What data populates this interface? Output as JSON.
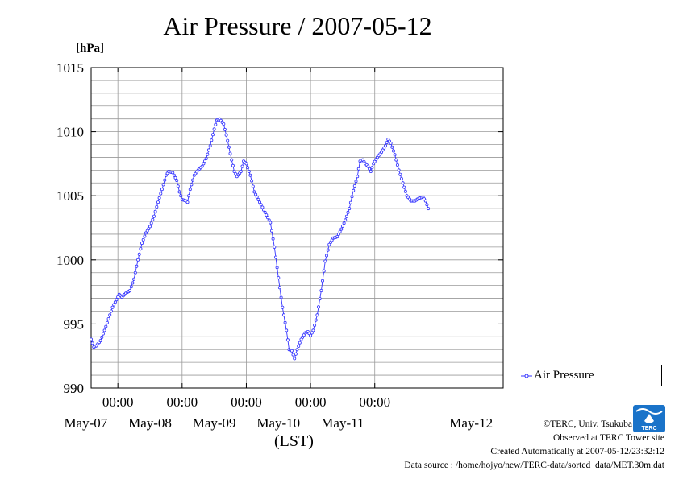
{
  "header": {
    "title": "Air Pressure / 2007-05-12",
    "unit": "[hPa]"
  },
  "legend": {
    "label": "Air Pressure"
  },
  "axis": {
    "x_unit": "(LST)"
  },
  "footer": {
    "copyright": "©TERC, Univ. Tsukuba",
    "observed": "Observed at TERC Tower site",
    "created": "Created Automatically at 2007-05-12/23:32:12",
    "source": "Data source : /home/hojyo/new/TERC-data/sorted_data/MET.30m.dat",
    "logo_text": "TERC"
  },
  "colors": {
    "series": "#3333ff",
    "grid": "#9a9a9a",
    "logo": "#1a73c9"
  },
  "chart_data": {
    "type": "line",
    "title": "Air Pressure / 2007-05-12",
    "ylabel": "[hPa]",
    "xlabel": "(LST)",
    "ylim": [
      990,
      1015
    ],
    "yticks": [
      990,
      995,
      1000,
      1005,
      1010,
      1015
    ],
    "xlim": [
      "2007-05-06 14:00",
      "2007-05-13 00:00"
    ],
    "xticks": [
      {
        "time": "2007-05-07 00:00",
        "time_label": "00:00",
        "date_label": "May-07"
      },
      {
        "time": "2007-05-08 00:00",
        "time_label": "00:00",
        "date_label": "May-08"
      },
      {
        "time": "2007-05-09 00:00",
        "time_label": "00:00",
        "date_label": "May-09"
      },
      {
        "time": "2007-05-10 00:00",
        "time_label": "00:00",
        "date_label": "May-10"
      },
      {
        "time": "2007-05-11 00:00",
        "time_label": "00:00",
        "date_label": "May-11"
      }
    ],
    "extra_date_labels": [
      {
        "time": "2007-05-12 12:00",
        "label": "May-12"
      }
    ],
    "grid": true,
    "legend_position": "right",
    "series": [
      {
        "name": "Air Pressure",
        "points": [
          [
            "2007-05-06 14:00",
            993.8
          ],
          [
            "2007-05-06 15:00",
            993.2
          ],
          [
            "2007-05-06 16:00",
            993.3
          ],
          [
            "2007-05-06 17:30",
            993.7
          ],
          [
            "2007-05-06 19:00",
            994.5
          ],
          [
            "2007-05-06 20:30",
            995.4
          ],
          [
            "2007-05-06 22:00",
            996.3
          ],
          [
            "2007-05-06 23:30",
            996.9
          ],
          [
            "2007-05-07 00:30",
            997.3
          ],
          [
            "2007-05-07 01:30",
            997.1
          ],
          [
            "2007-05-07 03:00",
            997.4
          ],
          [
            "2007-05-07 04:30",
            997.6
          ],
          [
            "2007-05-07 06:00",
            998.5
          ],
          [
            "2007-05-07 07:30",
            1000.0
          ],
          [
            "2007-05-07 09:00",
            1001.3
          ],
          [
            "2007-05-07 10:30",
            1002.1
          ],
          [
            "2007-05-07 12:00",
            1002.6
          ],
          [
            "2007-05-07 13:30",
            1003.4
          ],
          [
            "2007-05-07 15:00",
            1004.5
          ],
          [
            "2007-05-07 16:30",
            1005.5
          ],
          [
            "2007-05-07 18:00",
            1006.6
          ],
          [
            "2007-05-07 19:00",
            1006.9
          ],
          [
            "2007-05-07 20:30",
            1006.8
          ],
          [
            "2007-05-07 22:00",
            1006.2
          ],
          [
            "2007-05-07 23:00",
            1005.3
          ],
          [
            "2007-05-08 00:00",
            1004.7
          ],
          [
            "2007-05-08 01:30",
            1004.6
          ],
          [
            "2007-05-08 02:00",
            1004.5
          ],
          [
            "2007-05-08 03:00",
            1005.5
          ],
          [
            "2007-05-08 04:30",
            1006.6
          ],
          [
            "2007-05-08 06:00",
            1007.0
          ],
          [
            "2007-05-08 07:30",
            1007.3
          ],
          [
            "2007-05-08 09:00",
            1007.9
          ],
          [
            "2007-05-08 10:30",
            1008.9
          ],
          [
            "2007-05-08 12:00",
            1010.2
          ],
          [
            "2007-05-08 13:00",
            1010.9
          ],
          [
            "2007-05-08 14:00",
            1011.0
          ],
          [
            "2007-05-08 15:30",
            1010.6
          ],
          [
            "2007-05-08 17:00",
            1009.3
          ],
          [
            "2007-05-08 18:30",
            1007.8
          ],
          [
            "2007-05-08 19:30",
            1006.9
          ],
          [
            "2007-05-08 20:30",
            1006.5
          ],
          [
            "2007-05-08 22:00",
            1006.9
          ],
          [
            "2007-05-08 23:00",
            1007.7
          ],
          [
            "2007-05-09 00:00",
            1007.5
          ],
          [
            "2007-05-09 01:30",
            1006.6
          ],
          [
            "2007-05-09 03:00",
            1005.3
          ],
          [
            "2007-05-09 04:30",
            1004.7
          ],
          [
            "2007-05-09 06:00",
            1004.1
          ],
          [
            "2007-05-09 07:30",
            1003.5
          ],
          [
            "2007-05-09 09:00",
            1002.9
          ],
          [
            "2007-05-09 10:30",
            1001.0
          ],
          [
            "2007-05-09 12:00",
            998.6
          ],
          [
            "2007-05-09 13:30",
            996.3
          ],
          [
            "2007-05-09 15:00",
            994.5
          ],
          [
            "2007-05-09 16:00",
            993.0
          ],
          [
            "2007-05-09 17:00",
            992.9
          ],
          [
            "2007-05-09 18:00",
            992.3
          ],
          [
            "2007-05-09 19:00",
            993.0
          ],
          [
            "2007-05-09 20:30",
            993.8
          ],
          [
            "2007-05-09 22:00",
            994.3
          ],
          [
            "2007-05-09 23:00",
            994.4
          ],
          [
            "2007-05-10 00:00",
            994.1
          ],
          [
            "2007-05-10 01:00",
            994.5
          ],
          [
            "2007-05-10 02:30",
            995.7
          ],
          [
            "2007-05-10 04:00",
            997.6
          ],
          [
            "2007-05-10 05:30",
            999.9
          ],
          [
            "2007-05-10 07:00",
            1001.2
          ],
          [
            "2007-05-10 08:30",
            1001.7
          ],
          [
            "2007-05-10 10:00",
            1001.8
          ],
          [
            "2007-05-10 11:30",
            1002.4
          ],
          [
            "2007-05-10 13:00",
            1003.1
          ],
          [
            "2007-05-10 14:30",
            1004.0
          ],
          [
            "2007-05-10 16:00",
            1005.4
          ],
          [
            "2007-05-10 17:30",
            1006.5
          ],
          [
            "2007-05-10 18:30",
            1007.7
          ],
          [
            "2007-05-10 19:30",
            1007.8
          ],
          [
            "2007-05-10 20:30",
            1007.5
          ],
          [
            "2007-05-10 21:30",
            1007.3
          ],
          [
            "2007-05-10 22:30",
            1006.9
          ],
          [
            "2007-05-10 23:30",
            1007.5
          ],
          [
            "2007-05-11 01:00",
            1008.0
          ],
          [
            "2007-05-11 02:30",
            1008.4
          ],
          [
            "2007-05-11 04:00",
            1008.9
          ],
          [
            "2007-05-11 05:00",
            1009.4
          ],
          [
            "2007-05-11 06:00",
            1009.1
          ],
          [
            "2007-05-11 07:30",
            1008.2
          ],
          [
            "2007-05-11 09:00",
            1007.0
          ],
          [
            "2007-05-11 10:30",
            1006.0
          ],
          [
            "2007-05-11 12:00",
            1005.0
          ],
          [
            "2007-05-11 13:30",
            1004.6
          ],
          [
            "2007-05-11 15:00",
            1004.6
          ],
          [
            "2007-05-11 16:30",
            1004.8
          ],
          [
            "2007-05-11 18:00",
            1004.9
          ],
          [
            "2007-05-11 19:00",
            1004.6
          ],
          [
            "2007-05-11 20:00",
            1004.0
          ]
        ]
      }
    ]
  }
}
